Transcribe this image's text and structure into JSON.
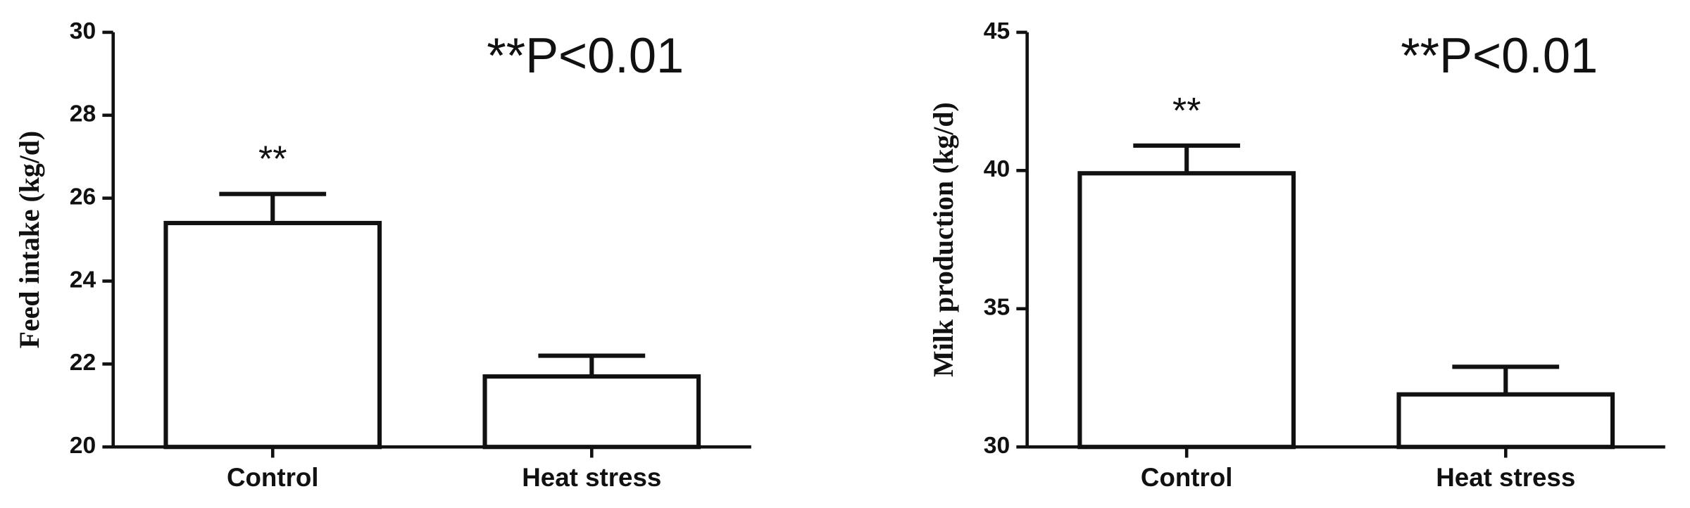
{
  "chart_data": [
    {
      "type": "bar",
      "ylabel": "Feed intake (kg/d)",
      "annotation": "**P<0.01",
      "categories": [
        "Control",
        "Heat stress"
      ],
      "values": [
        25.4,
        21.7
      ],
      "errors": [
        0.7,
        0.5
      ],
      "value_annotations": [
        "**",
        null
      ],
      "color": "#ffffff",
      "ylim": [
        20,
        30
      ],
      "yticks": [
        20,
        22,
        24,
        26,
        28,
        30
      ]
    },
    {
      "type": "bar",
      "ylabel": "Milk production (kg/d)",
      "annotation": "**P<0.01",
      "categories": [
        "Control",
        "Heat stress"
      ],
      "values": [
        39.9,
        31.9
      ],
      "errors": [
        1.0,
        1.0
      ],
      "value_annotations": [
        "**",
        null
      ],
      "color": "#ffffff",
      "ylim": [
        30,
        45
      ],
      "yticks": [
        30,
        35,
        40,
        45
      ]
    }
  ]
}
